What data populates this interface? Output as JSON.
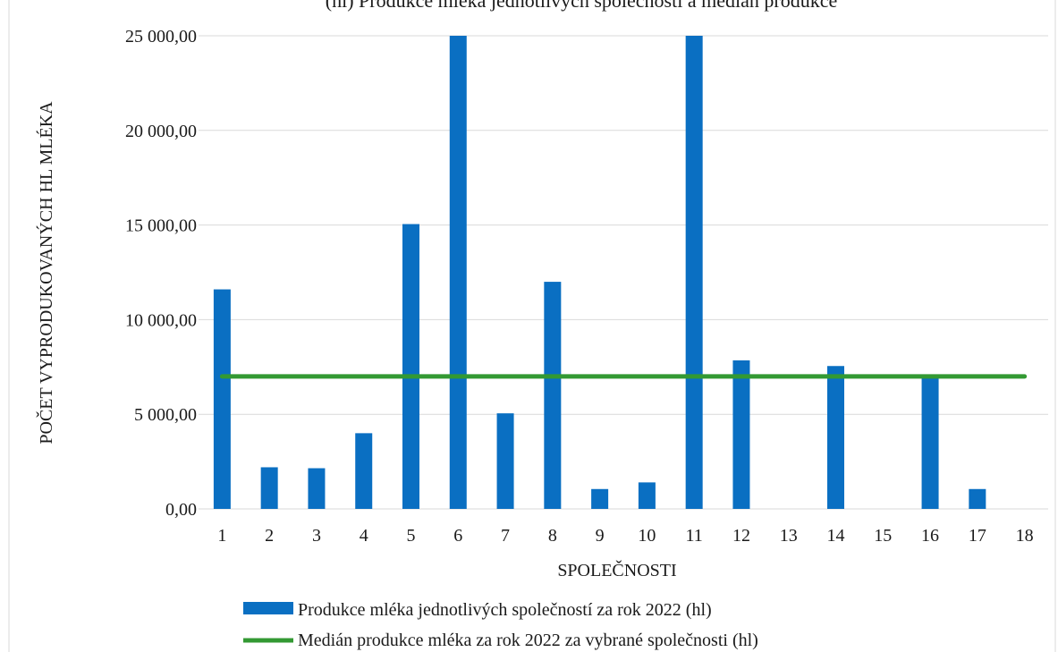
{
  "chart_data": {
    "type": "bar",
    "title": "(hl) Produkce mléka jednotlivých společností a medián produkce",
    "xlabel": "SPOLEČNOSTI",
    "ylabel": "POČET VYPRODUKOVANÝCH HL MLÉKA",
    "categories": [
      "1",
      "2",
      "3",
      "4",
      "5",
      "6",
      "7",
      "8",
      "9",
      "10",
      "11",
      "12",
      "13",
      "14",
      "15",
      "16",
      "17",
      "18"
    ],
    "yticks": [
      "0,00",
      "5 000,00",
      "10 000,00",
      "15 000,00",
      "20 000,00",
      "25 000,00"
    ],
    "ylim": [
      0,
      25000
    ],
    "grid": true,
    "legend_position": "bottom",
    "series": [
      {
        "name": "Produkce mléka jednotlivých společností za rok 2022 (hl)",
        "type": "bar",
        "color": "#0a6fc2",
        "values": [
          11600,
          2200,
          2150,
          4000,
          15050,
          25000,
          5050,
          12000,
          1050,
          1400,
          25000,
          7850,
          0,
          7550,
          0,
          7000,
          1050,
          0
        ]
      },
      {
        "name": "Medián produkce mléka za rok 2022 za vybrané společnosti (hl)",
        "type": "line",
        "color": "#339933",
        "values": [
          7000,
          7000,
          7000,
          7000,
          7000,
          7000,
          7000,
          7000,
          7000,
          7000,
          7000,
          7000,
          7000,
          7000,
          7000,
          7000,
          7000,
          7000
        ]
      }
    ]
  }
}
